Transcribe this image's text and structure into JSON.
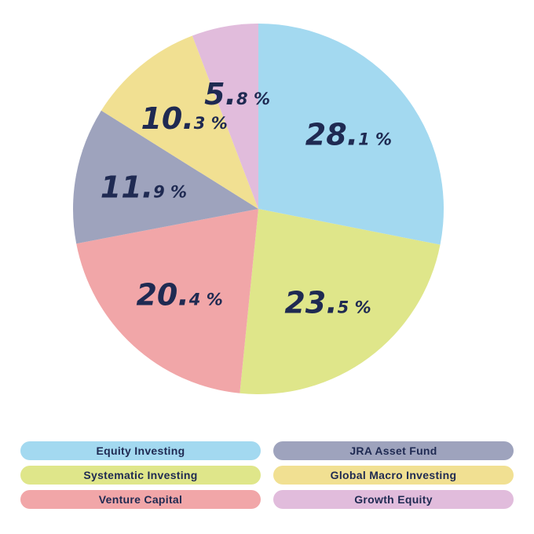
{
  "chart_data": {
    "type": "pie",
    "title": "",
    "slices": [
      {
        "label": "Equity Investing",
        "value": 28.1,
        "int": "28.",
        "dec": "1 %",
        "color": "#a3d9f0"
      },
      {
        "label": "Systematic Investing",
        "value": 23.5,
        "int": "23.",
        "dec": "5 %",
        "color": "#dfe68a"
      },
      {
        "label": "Venture Capital",
        "value": 20.4,
        "int": "20.",
        "dec": "4 %",
        "color": "#f1a6a8"
      },
      {
        "label": "JRA Asset Fund",
        "value": 11.9,
        "int": "11.",
        "dec": "9 %",
        "color": "#9ea3bd"
      },
      {
        "label": "Global Macro Investing",
        "value": 10.3,
        "int": "10.",
        "dec": "3 %",
        "color": "#f1e092"
      },
      {
        "label": "Growth Equity",
        "value": 5.8,
        "int": "5.",
        "dec": "8 %",
        "color": "#e1bcdc"
      }
    ],
    "legend": {
      "placement": "bottom",
      "order": [
        "Equity Investing",
        "JRA Asset Fund",
        "Systematic Investing",
        "Global Macro Investing",
        "Venture Capital",
        "Growth Equity"
      ]
    }
  }
}
